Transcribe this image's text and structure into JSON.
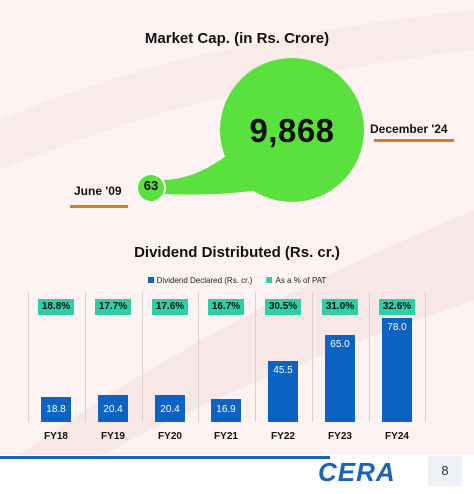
{
  "market_cap": {
    "title": "Market Cap. (in Rs. Crore)",
    "start_value": "63",
    "start_label": "June '09",
    "end_value": "9,868",
    "end_label": "December '24",
    "bubble_color": "#5be13e",
    "underline_color": "#e07a1f"
  },
  "dividend": {
    "title": "Dividend Distributed (Rs. cr.)",
    "legend": [
      {
        "label": "Dividend Declared (Rs. cr.)",
        "color": "#0b63c4"
      },
      {
        "label": "As a % of PAT",
        "color": "#2ecfa6"
      }
    ]
  },
  "chart_data": {
    "type": "bar",
    "title": "Dividend Distributed (Rs. cr.)",
    "categories": [
      "FY18",
      "FY19",
      "FY20",
      "FY21",
      "FY22",
      "FY23",
      "FY24"
    ],
    "series": [
      {
        "name": "Dividend Declared (Rs. cr.)",
        "values": [
          18.8,
          20.4,
          20.4,
          16.9,
          45.5,
          65.0,
          78.0
        ],
        "labels": [
          "18.8",
          "20.4",
          "20.4",
          "16.9",
          "45.5",
          "65.0",
          "78.0"
        ]
      },
      {
        "name": "As a % of PAT",
        "labels": [
          "18.8%",
          "17.7%",
          "17.6%",
          "16.7%",
          "30.5%",
          "31.0%",
          "32.6%"
        ]
      }
    ],
    "grid": false,
    "legend_position": "top"
  },
  "footer": {
    "logo_text": "CERA",
    "page_number": "8",
    "logo_color": "#1d63b8"
  }
}
